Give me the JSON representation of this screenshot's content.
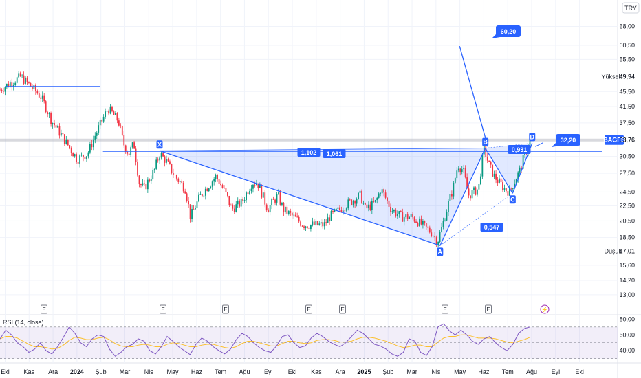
{
  "chart_data": [
    {
      "type": "candlestick",
      "currency": "TRY",
      "y_scale": "log",
      "ylim": [
        12.4,
        72
      ],
      "price_ticks": [
        "68,00",
        "60,50",
        "55,50",
        "49,94",
        "45,50",
        "41,50",
        "37,50",
        "33,76",
        "30,50",
        "27,50",
        "24,50",
        "22,50",
        "20,50",
        "18,50",
        "17,01",
        "15,60",
        "14,20",
        "13,00"
      ],
      "tick_values": [
        68,
        60.5,
        55.5,
        45.5,
        41.5,
        37.5,
        30.5,
        27.5,
        24.5,
        22.5,
        20.5,
        18.5,
        15.6,
        14.2,
        13
      ],
      "x_ticks": [
        "Eki",
        "Kas",
        "Ara",
        "2024",
        "Şub",
        "Mar",
        "Nis",
        "May",
        "Haz",
        "Tem",
        "Ağu",
        "Eyl",
        "Eki",
        "Kas",
        "Ara",
        "2025",
        "Şub",
        "Mar",
        "Nis",
        "May",
        "Haz",
        "Tem",
        "Ağu",
        "Eyl",
        "Eki"
      ],
      "high_label": {
        "label": "Yüksek",
        "value": 49.94
      },
      "low_label": {
        "label": "Düşük",
        "value": 17.01
      },
      "last_price": {
        "symbol": "BAGFS",
        "value": 33.76
      },
      "price_path": [
        [
          0,
          46
        ],
        [
          4,
          49.9
        ],
        [
          8,
          44
        ],
        [
          10,
          38
        ],
        [
          13,
          33
        ],
        [
          15,
          30
        ],
        [
          17,
          31
        ],
        [
          19,
          36
        ],
        [
          21,
          41
        ],
        [
          23,
          38
        ],
        [
          24,
          33
        ],
        [
          25,
          31
        ],
        [
          26,
          33
        ],
        [
          27,
          26
        ],
        [
          28,
          25
        ],
        [
          30,
          28
        ],
        [
          31,
          31
        ],
        [
          32,
          30
        ],
        [
          34,
          27
        ],
        [
          36,
          25
        ],
        [
          37,
          21
        ],
        [
          39,
          24
        ],
        [
          41,
          26
        ],
        [
          42,
          27
        ],
        [
          44,
          24
        ],
        [
          45,
          22
        ],
        [
          47,
          23
        ],
        [
          49,
          26
        ],
        [
          50,
          26
        ],
        [
          52,
          22
        ],
        [
          54,
          24
        ],
        [
          55,
          22
        ],
        [
          57,
          21
        ],
        [
          59,
          20
        ],
        [
          61,
          20
        ],
        [
          63,
          20
        ],
        [
          64,
          21
        ],
        [
          66,
          22
        ],
        [
          68,
          23
        ],
        [
          70,
          24
        ],
        [
          71,
          22
        ],
        [
          73,
          23
        ],
        [
          74,
          25
        ],
        [
          76,
          22
        ],
        [
          78,
          21
        ],
        [
          80,
          21
        ],
        [
          82,
          20
        ],
        [
          84,
          19
        ],
        [
          85,
          18
        ],
        [
          86,
          20
        ],
        [
          88,
          25
        ],
        [
          89,
          29
        ],
        [
          90,
          28
        ],
        [
          91,
          24
        ],
        [
          93,
          25
        ],
        [
          94,
          32
        ],
        [
          95,
          29
        ],
        [
          96,
          27
        ],
        [
          98,
          25
        ],
        [
          99,
          24.5
        ],
        [
          101,
          28
        ],
        [
          102,
          31
        ],
        [
          103,
          33.76
        ]
      ],
      "patterns": {
        "pivot_labels": [
          "X",
          "A",
          "B",
          "C",
          "D"
        ],
        "x_value": 31.6,
        "a_value": 17.6,
        "b_value": 32.1,
        "c_value": 24.3,
        "d_value": 33.1,
        "ratios": [
          "1,102",
          "1,061",
          "0,931",
          "0,547"
        ],
        "target_high": "60,20",
        "target_d": "32,20"
      },
      "earnings_marker": "E",
      "dividend_marker": "⚡"
    },
    {
      "type": "line",
      "title": "RSI (14, close)",
      "y_ticks": [
        "80,00",
        "60,00",
        "40,00"
      ],
      "tick_values": [
        80,
        60,
        40
      ],
      "ylim": [
        28,
        82
      ],
      "band": [
        30,
        70
      ],
      "mid": 50,
      "series": [
        {
          "values": [
            55,
            66,
            60,
            50,
            45,
            38,
            42,
            50,
            40,
            36,
            45,
            57,
            70,
            62,
            50,
            45,
            55,
            60,
            58,
            42,
            33,
            38,
            45,
            48,
            55,
            52,
            40,
            36,
            45,
            58,
            52,
            45,
            40,
            35,
            48,
            56,
            52,
            45,
            40,
            36,
            42,
            54,
            62,
            58,
            50,
            44,
            40,
            38,
            46,
            58,
            60,
            50,
            44,
            46,
            56,
            62,
            58,
            52,
            48,
            45,
            50,
            58,
            66,
            62,
            55,
            48,
            46,
            42,
            36,
            33,
            38,
            55,
            52,
            38,
            34,
            45,
            70,
            74,
            65,
            60,
            66,
            60,
            52,
            48,
            55,
            58,
            50,
            44,
            40,
            48,
            62,
            68,
            70
          ]
        },
        {
          "values": [
            55,
            58,
            58,
            56,
            52,
            48,
            45,
            45,
            44,
            42,
            43,
            47,
            53,
            57,
            56,
            54,
            54,
            56,
            57,
            54,
            49,
            46,
            45,
            45,
            47,
            48,
            47,
            45,
            45,
            48,
            50,
            49,
            47,
            45,
            45,
            47,
            48,
            48,
            46,
            44,
            43,
            45,
            49,
            52,
            52,
            50,
            48,
            46,
            46,
            49,
            52,
            52,
            50,
            49,
            50,
            53,
            54,
            54,
            53,
            51,
            51,
            52,
            55,
            57,
            57,
            56,
            54,
            52,
            49,
            46,
            44,
            45,
            47,
            47,
            45,
            45,
            51,
            56,
            58,
            58,
            60,
            60,
            58,
            56,
            56,
            56,
            55,
            53,
            51,
            50,
            52,
            54,
            57
          ]
        }
      ]
    }
  ]
}
